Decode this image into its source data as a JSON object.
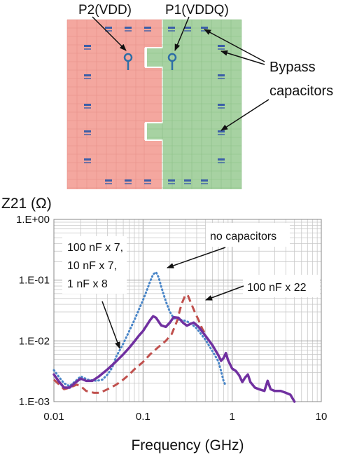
{
  "board": {
    "colors": {
      "vdd_plane": "#f4a79f",
      "vddq_plane": "#a7d2a2",
      "grid_red": "#e58f88",
      "grid_green": "#8cc086",
      "probe": "#2e6ea6",
      "capacitor": "#3b5ea8"
    },
    "port_labels": {
      "p2": "P2(VDD)",
      "p1": "P1(VDDQ)"
    },
    "bypass_label": {
      "line1": "Bypass",
      "line2": "capacitors"
    }
  },
  "chart_data": {
    "type": "line",
    "title": "",
    "ylabel": "Z21 (Ω)",
    "xlabel": "Frequency (GHz)",
    "xscale": "log",
    "yscale": "log",
    "xlim": [
      0.01,
      10
    ],
    "ylim": [
      0.001,
      1
    ],
    "grid": true,
    "x_ticks": [
      0.01,
      0.1,
      1,
      10
    ],
    "x_tick_labels": [
      "0.01",
      "0.1",
      "1",
      "10"
    ],
    "y_ticks": [
      0.001,
      0.01,
      0.1,
      1
    ],
    "y_tick_labels": [
      "1.E-03",
      "1.E-02",
      "1.E-01",
      "1.E+00"
    ],
    "series": [
      {
        "key": "no_caps",
        "color": "#4a86c8",
        "style": "dotted",
        "points": [
          [
            0.01,
            0.0033
          ],
          [
            0.0115,
            0.0025
          ],
          [
            0.013,
            0.002
          ],
          [
            0.015,
            0.0018
          ],
          [
            0.017,
            0.0021
          ],
          [
            0.02,
            0.0026
          ],
          [
            0.024,
            0.0023
          ],
          [
            0.03,
            0.0022
          ],
          [
            0.035,
            0.0023
          ],
          [
            0.04,
            0.0028
          ],
          [
            0.045,
            0.0036
          ],
          [
            0.05,
            0.0055
          ],
          [
            0.06,
            0.009
          ],
          [
            0.07,
            0.0145
          ],
          [
            0.08,
            0.022
          ],
          [
            0.09,
            0.033
          ],
          [
            0.1,
            0.047
          ],
          [
            0.11,
            0.067
          ],
          [
            0.12,
            0.095
          ],
          [
            0.13,
            0.125
          ],
          [
            0.14,
            0.135
          ],
          [
            0.15,
            0.11
          ],
          [
            0.16,
            0.078
          ],
          [
            0.18,
            0.045
          ],
          [
            0.2,
            0.03
          ],
          [
            0.22,
            0.024
          ],
          [
            0.25,
            0.022
          ],
          [
            0.28,
            0.022
          ],
          [
            0.31,
            0.021
          ],
          [
            0.35,
            0.019
          ],
          [
            0.4,
            0.016
          ],
          [
            0.5,
            0.0105
          ],
          [
            0.6,
            0.0068
          ],
          [
            0.7,
            0.0046
          ],
          [
            0.75,
            0.0032
          ],
          [
            0.8,
            0.0022
          ],
          [
            0.85,
            0.0018
          ]
        ]
      },
      {
        "key": "caps_22",
        "color": "#c0504d",
        "style": "dashed",
        "points": [
          [
            0.01,
            0.0023
          ],
          [
            0.0115,
            0.0019
          ],
          [
            0.013,
            0.0016
          ],
          [
            0.015,
            0.0017
          ],
          [
            0.018,
            0.0019
          ],
          [
            0.02,
            0.0018
          ],
          [
            0.023,
            0.0015
          ],
          [
            0.028,
            0.0014
          ],
          [
            0.033,
            0.0014
          ],
          [
            0.04,
            0.0016
          ],
          [
            0.05,
            0.0019
          ],
          [
            0.06,
            0.0023
          ],
          [
            0.07,
            0.0028
          ],
          [
            0.08,
            0.0034
          ],
          [
            0.1,
            0.0045
          ],
          [
            0.12,
            0.006
          ],
          [
            0.15,
            0.008
          ],
          [
            0.18,
            0.01
          ],
          [
            0.21,
            0.013
          ],
          [
            0.24,
            0.021
          ],
          [
            0.27,
            0.04
          ],
          [
            0.3,
            0.058
          ],
          [
            0.32,
            0.055
          ],
          [
            0.35,
            0.04
          ],
          [
            0.38,
            0.03
          ],
          [
            0.42,
            0.022
          ],
          [
            0.46,
            0.016
          ],
          [
            0.5,
            0.013
          ]
        ]
      },
      {
        "key": "caps_mix",
        "color": "#7030a0",
        "style": "solid",
        "points": [
          [
            0.01,
            0.0028
          ],
          [
            0.0115,
            0.0021
          ],
          [
            0.013,
            0.0017
          ],
          [
            0.015,
            0.0017
          ],
          [
            0.017,
            0.002
          ],
          [
            0.02,
            0.0024
          ],
          [
            0.023,
            0.0022
          ],
          [
            0.027,
            0.0022
          ],
          [
            0.032,
            0.0026
          ],
          [
            0.04,
            0.0034
          ],
          [
            0.05,
            0.0046
          ],
          [
            0.06,
            0.006
          ],
          [
            0.07,
            0.0077
          ],
          [
            0.08,
            0.0098
          ],
          [
            0.09,
            0.0122
          ],
          [
            0.1,
            0.0145
          ],
          [
            0.11,
            0.018
          ],
          [
            0.12,
            0.022
          ],
          [
            0.13,
            0.0255
          ],
          [
            0.14,
            0.024
          ],
          [
            0.16,
            0.018
          ],
          [
            0.18,
            0.017
          ],
          [
            0.2,
            0.02
          ],
          [
            0.22,
            0.0245
          ],
          [
            0.25,
            0.024
          ],
          [
            0.28,
            0.02
          ],
          [
            0.31,
            0.0178
          ],
          [
            0.34,
            0.019
          ],
          [
            0.37,
            0.02
          ],
          [
            0.42,
            0.017
          ],
          [
            0.5,
            0.0122
          ],
          [
            0.6,
            0.0085
          ],
          [
            0.7,
            0.0058
          ],
          [
            0.75,
            0.0047
          ],
          [
            0.8,
            0.0052
          ],
          [
            0.85,
            0.0063
          ],
          [
            0.9,
            0.0048
          ],
          [
            1.0,
            0.0035
          ],
          [
            1.1,
            0.0032
          ],
          [
            1.2,
            0.0027
          ],
          [
            1.3,
            0.0021
          ],
          [
            1.4,
            0.0025
          ],
          [
            1.5,
            0.0028
          ],
          [
            1.6,
            0.0021
          ],
          [
            1.8,
            0.0017
          ],
          [
            2.0,
            0.0016
          ],
          [
            2.3,
            0.0015
          ],
          [
            2.5,
            0.0022
          ],
          [
            2.7,
            0.0016
          ],
          [
            3.0,
            0.0015
          ],
          [
            3.5,
            0.0015
          ],
          [
            4.0,
            0.0014
          ],
          [
            4.5,
            0.0013
          ],
          [
            5.0,
            0.001
          ]
        ]
      }
    ],
    "annotations": [
      {
        "key": "ann_nocap",
        "lines": [
          "no capacitors"
        ]
      },
      {
        "key": "ann_22",
        "lines": [
          "100 nF x 22"
        ]
      },
      {
        "key": "ann_mix",
        "lines": [
          "100 nF x 7,",
          "10 nF x 7,",
          "1 nF x 8"
        ]
      }
    ]
  }
}
